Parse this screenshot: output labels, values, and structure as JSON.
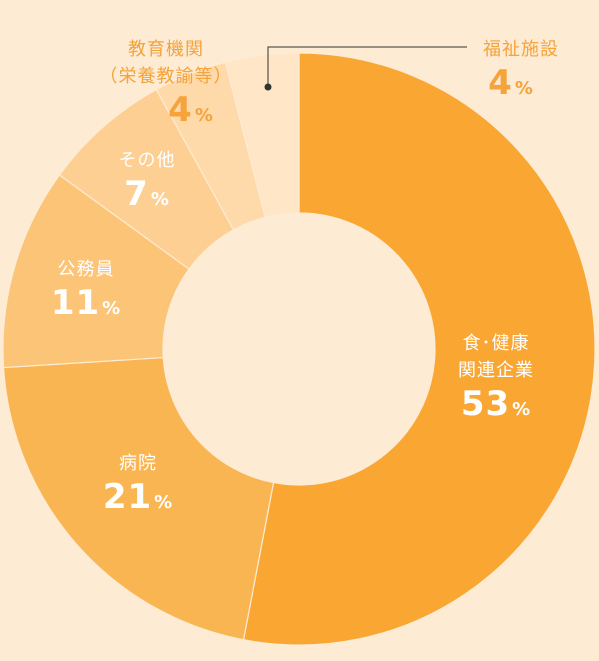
{
  "chart_data": {
    "type": "pie",
    "donut": true,
    "unit": "%",
    "slices": [
      {
        "name_lines": [
          "食･健康",
          "関連企業"
        ],
        "value": 53,
        "color": "#f9a633"
      },
      {
        "name_lines": [
          "病院"
        ],
        "value": 21,
        "color": "#fab553"
      },
      {
        "name_lines": [
          "公務員"
        ],
        "value": 11,
        "color": "#fcc477"
      },
      {
        "name_lines": [
          "その他"
        ],
        "value": 7,
        "color": "#fdcf92"
      },
      {
        "name_lines": [
          "教育機関",
          "（栄養教諭等）"
        ],
        "value": 4,
        "color": "#fed9a9"
      },
      {
        "name_lines": [
          "福祉施設"
        ],
        "value": 4,
        "color": "#fee6c7"
      }
    ]
  },
  "colors": {
    "background": "#fdebd3",
    "label_light": "#ffffff",
    "label_accent": "#f5a33a",
    "leader_line": "#333333"
  }
}
